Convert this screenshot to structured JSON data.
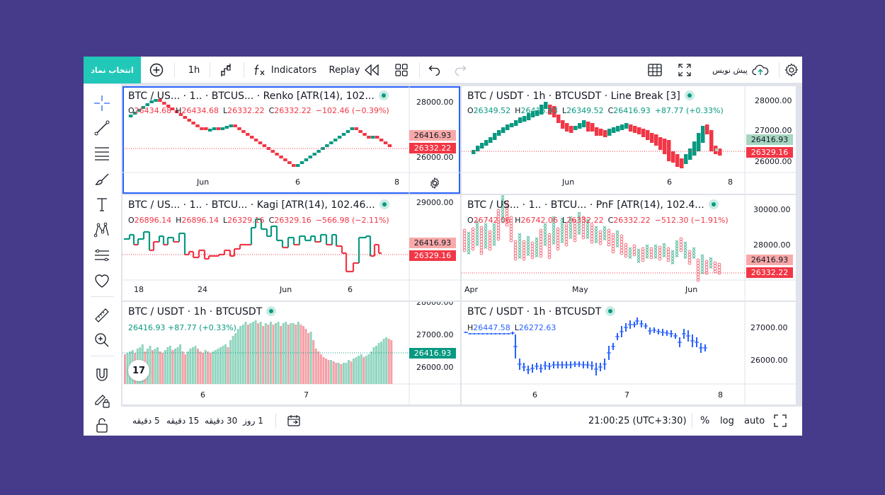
{
  "topbar": {
    "symbol_button": "انتخاب نماد",
    "interval": "1h",
    "indicators": "Indicators",
    "replay": "Replay",
    "publish": "پیش نویس"
  },
  "panes": [
    {
      "title": "BTC / US... · 1.. · BTCUS... · Renko [ATR(14), 102...",
      "ohlc": {
        "o": "26434.68",
        "h": "26434.68",
        "l": "26332.22",
        "c": "26332.22",
        "chg": "−102.46 (−0.39%)"
      },
      "prices": [
        "28000.00",
        "27000.00",
        "26000.00"
      ],
      "labels": [
        {
          "text": "26416.93",
          "color": "#f7a9a9"
        },
        {
          "text": "26332.22",
          "color": "#f23645"
        }
      ],
      "xlabels": [
        "Jun",
        "6",
        "8"
      ]
    },
    {
      "title": "BTC / USDT · 1h · BTCUSDT · Line Break [3]",
      "ohlc": {
        "o": "26349.52",
        "h": "26416.93",
        "l": "26349.52",
        "c": "26416.93",
        "chg": "+87.77 (+0.33%)"
      },
      "prices": [
        "28000.00",
        "27000.00",
        "26000.00"
      ],
      "labels": [
        {
          "text": "26416.93",
          "color": "#a5d6c1"
        },
        {
          "text": "26329.16",
          "color": "#f23645"
        }
      ],
      "xlabels": [
        "Jun",
        "6",
        "8"
      ]
    },
    {
      "title": "BTC / US... · 1.. · BTCU... · Kagi [ATR(14), 102.46...",
      "ohlc": {
        "o": "26896.14",
        "h": "26896.14",
        "l": "26329.16",
        "c": "26329.16",
        "chg": "−566.98 (−2.11%)"
      },
      "prices": [
        "29000.00"
      ],
      "labels": [
        {
          "text": "26416.93",
          "color": "#f7a9a9"
        },
        {
          "text": "26329.16",
          "color": "#f23645"
        }
      ],
      "xlabels": [
        "18",
        "24",
        "Jun",
        "6"
      ]
    },
    {
      "title": "BTC / US... · 1.. · BTCU... · PnF [ATR(14), 102.4...",
      "ohlc": {
        "o": "26742.06",
        "h": "26742.06",
        "l": "26332.22",
        "c": "26332.22",
        "chg": "−512.30 (−1.91%)"
      },
      "prices": [
        "30000.00",
        "28000.00"
      ],
      "labels": [
        {
          "text": "26416.93",
          "color": "#f7a9a9"
        },
        {
          "text": "26332.22",
          "color": "#f23645"
        }
      ],
      "xlabels": [
        "Apr",
        "May",
        "Jun"
      ]
    },
    {
      "title": "BTC / USDT · 1h · BTCUSDT",
      "line2": "26416.93  +87.77 (+0.33%)",
      "prices": [
        "28000.00",
        "27000.00",
        "26000.00"
      ],
      "labels": [
        {
          "text": "26416.93",
          "color": "#089981"
        }
      ],
      "xlabels": [
        "6",
        "7"
      ]
    },
    {
      "title": "BTC / USDT · 1h · BTCUSDT",
      "hl": {
        "h": "26447.58",
        "l": "26272.63"
      },
      "prices": [
        "27000.00",
        "26000.00"
      ],
      "xlabels": [
        "6",
        "7",
        "8"
      ]
    }
  ],
  "bottombar": {
    "ranges": [
      "5 دقیقه",
      "15 دقیقه",
      "30 دقیقه",
      "1 روز"
    ],
    "time": "21:00:25 (UTC+3:30)",
    "percent": "%",
    "log": "log",
    "auto": "auto"
  },
  "colors": {
    "up": "#089981",
    "down": "#f23645",
    "accent": "#21c8b8",
    "blue": "#2962ff",
    "line": "#2962ff"
  },
  "icons": [
    "plus-circle-icon",
    "bar-style-icon",
    "fx-icon",
    "rewind-icon",
    "layout-grid-icon",
    "undo-icon",
    "redo-icon",
    "table-icon",
    "fullscreen-icon",
    "cloud-upload-icon",
    "gear-icon",
    "crosshair-icon",
    "trendline-icon",
    "fib-icon",
    "brush-icon",
    "text-icon",
    "pattern-icon",
    "prediction-icon",
    "heart-icon",
    "ruler-icon",
    "zoom-icon",
    "magnet-icon",
    "lock-pencil-icon",
    "lock-icon",
    "calendar-icon",
    "expand-icon",
    "tradingview-logo-icon"
  ]
}
